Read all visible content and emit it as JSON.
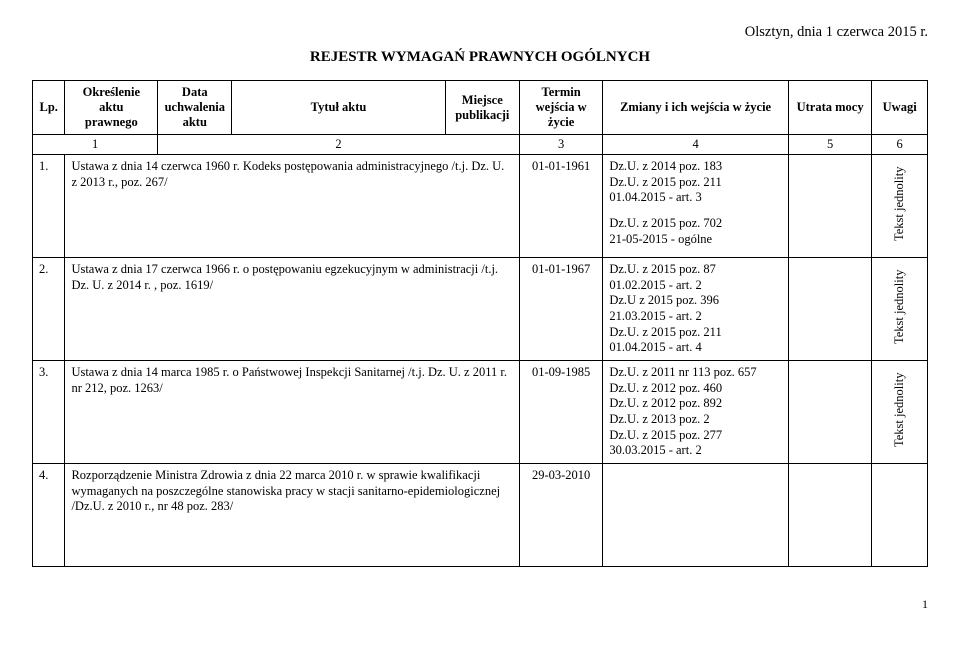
{
  "header_right": "Olsztyn, dnia 1 czerwca 2015 r.",
  "doc_title": "REJESTR WYMAGAŃ PRAWNYCH OGÓLNYCH",
  "columns": {
    "lp": "Lp.",
    "okreslenie": "Określenie aktu prawnego",
    "data": "Data uchwalenia aktu",
    "tytul": "Tytuł aktu",
    "miejsce": "Miejsce publikacji",
    "termin": "Termin wejścia w życie",
    "zmiany": "Zmiany i ich wejścia w życie",
    "utrata": "Utrata mocy",
    "uwagi": "Uwagi"
  },
  "numrow": {
    "c1": "1",
    "c2": "2",
    "c3": "3",
    "c4": "4",
    "c5": "5",
    "c6": "6"
  },
  "rows": [
    {
      "lp": "1.",
      "title": "Ustawa z dnia 14 czerwca 1960 r. Kodeks postępowania administracyjnego\n/t.j. Dz. U. z 2013 r., poz. 267/",
      "termin": "01-01-1961",
      "zmiany": "Dz.U. z 2014 poz. 183\nDz.U. z 2015 poz. 211\n01.04.2015      - art. 3",
      "zmiany_extra": "Dz.U. z 2015 poz. 702\n21-05-2015    - ogólne",
      "uwagi": "Tekst   jednolity"
    },
    {
      "lp": "2.",
      "title": "Ustawa z dnia 17 czerwca 1966 r. o postępowaniu egzekucyjnym w administracji\n/t.j. Dz. U. z 2014 r. , poz. 1619/",
      "termin": "01-01-1967",
      "zmiany": "Dz.U. z 2015 poz. 87\n01.02.2015   - art. 2\nDz.U z 2015 poz. 396\n21.03.2015        - art. 2\nDz.U. z 2015 poz. 211\n01.04.2015        - art. 4",
      "uwagi": "Tekst jednolity"
    },
    {
      "lp": "3.",
      "title": "Ustawa z dnia 14 marca 1985 r. o Państwowej Inspekcji Sanitarnej\n/t.j. Dz. U. z 2011 r. nr 212, poz. 1263/",
      "termin": "01-09-1985",
      "zmiany": "Dz.U. z 2011 nr 113 poz. 657\nDz.U. z 2012 poz. 460\nDz.U. z 2012 poz. 892\nDz.U. z 2013 poz. 2\nDz.U. z 2015 poz. 277\n30.03.2015    - art. 2",
      "uwagi": "Tekst jednolity"
    },
    {
      "lp": "4.",
      "title": "Rozporządzenie Ministra Zdrowia  z dnia 22 marca 2010 r. w sprawie kwalifikacji wymaganych na poszczególne stanowiska pracy w stacji sanitarno-epidemiologicznej /Dz.U. z 2010 r., nr 48 poz. 283/",
      "termin": "29-03-2010",
      "zmiany": "",
      "uwagi": ""
    }
  ],
  "page_number": "1"
}
